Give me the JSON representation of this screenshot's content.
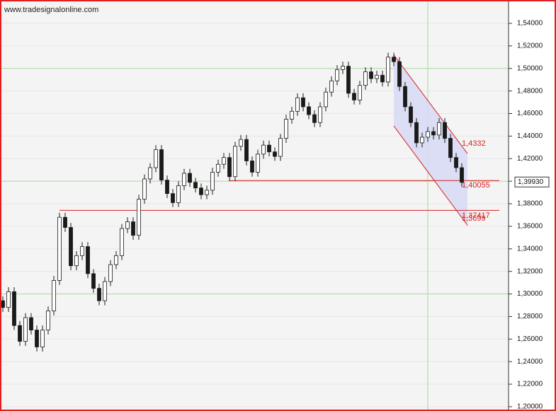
{
  "chart_data": {
    "type": "candlestick",
    "watermark": "www.tradesignalonline.com",
    "open": [
      1.294,
      1.288,
      1.302,
      1.272,
      1.258,
      1.279,
      1.268,
      1.253,
      1.268,
      1.285,
      1.312,
      1.368,
      1.359,
      1.325,
      1.334,
      1.342,
      1.318,
      1.305,
      1.294,
      1.311,
      1.326,
      1.334,
      1.358,
      1.364,
      1.352,
      1.384,
      1.402,
      1.412,
      1.428,
      1.401,
      1.389,
      1.381,
      1.396,
      1.407,
      1.399,
      1.394,
      1.388,
      1.392,
      1.408,
      1.415,
      1.421,
      1.404,
      1.431,
      1.437,
      1.418,
      1.408,
      1.424,
      1.432,
      1.426,
      1.422,
      1.438,
      1.455,
      1.462,
      1.474,
      1.466,
      1.459,
      1.452,
      1.466,
      1.479,
      1.489,
      1.499,
      1.502,
      1.478,
      1.472,
      1.485,
      1.497,
      1.491,
      1.494,
      1.488,
      1.51,
      1.506,
      1.484,
      1.466,
      1.452,
      1.434,
      1.439,
      1.444,
      1.441,
      1.452,
      1.438,
      1.421,
      1.412
    ],
    "high": [
      1.298,
      1.306,
      1.306,
      1.276,
      1.283,
      1.283,
      1.272,
      1.272,
      1.289,
      1.316,
      1.372,
      1.372,
      1.363,
      1.338,
      1.346,
      1.346,
      1.322,
      1.309,
      1.315,
      1.33,
      1.338,
      1.362,
      1.368,
      1.368,
      1.388,
      1.406,
      1.416,
      1.432,
      1.432,
      1.405,
      1.393,
      1.4,
      1.411,
      1.411,
      1.403,
      1.398,
      1.396,
      1.412,
      1.419,
      1.425,
      1.425,
      1.435,
      1.441,
      1.441,
      1.422,
      1.428,
      1.436,
      1.436,
      1.43,
      1.442,
      1.459,
      1.466,
      1.478,
      1.478,
      1.47,
      1.463,
      1.47,
      1.483,
      1.493,
      1.503,
      1.506,
      1.506,
      1.482,
      1.489,
      1.501,
      1.501,
      1.498,
      1.498,
      1.514,
      1.514,
      1.51,
      1.488,
      1.47,
      1.456,
      1.443,
      1.448,
      1.448,
      1.456,
      1.456,
      1.442,
      1.425,
      1.416
    ],
    "low": [
      1.284,
      1.284,
      1.268,
      1.254,
      1.254,
      1.264,
      1.249,
      1.249,
      1.264,
      1.281,
      1.308,
      1.355,
      1.321,
      1.321,
      1.33,
      1.314,
      1.301,
      1.29,
      1.29,
      1.307,
      1.322,
      1.33,
      1.354,
      1.348,
      1.348,
      1.38,
      1.398,
      1.408,
      1.397,
      1.385,
      1.377,
      1.377,
      1.392,
      1.395,
      1.39,
      1.384,
      1.384,
      1.388,
      1.404,
      1.411,
      1.4,
      1.4,
      1.427,
      1.414,
      1.404,
      1.404,
      1.42,
      1.422,
      1.418,
      1.418,
      1.434,
      1.451,
      1.458,
      1.462,
      1.455,
      1.448,
      1.448,
      1.462,
      1.475,
      1.485,
      1.495,
      1.474,
      1.468,
      1.468,
      1.481,
      1.487,
      1.487,
      1.484,
      1.484,
      1.502,
      1.48,
      1.462,
      1.448,
      1.43,
      1.43,
      1.435,
      1.437,
      1.437,
      1.434,
      1.417,
      1.408,
      1.395
    ],
    "close": [
      1.288,
      1.302,
      1.272,
      1.258,
      1.279,
      1.268,
      1.253,
      1.268,
      1.285,
      1.312,
      1.368,
      1.359,
      1.325,
      1.334,
      1.342,
      1.318,
      1.305,
      1.294,
      1.311,
      1.326,
      1.334,
      1.358,
      1.364,
      1.352,
      1.384,
      1.402,
      1.412,
      1.428,
      1.401,
      1.389,
      1.381,
      1.396,
      1.407,
      1.399,
      1.394,
      1.388,
      1.392,
      1.408,
      1.415,
      1.421,
      1.404,
      1.431,
      1.437,
      1.418,
      1.408,
      1.424,
      1.432,
      1.426,
      1.422,
      1.438,
      1.455,
      1.462,
      1.474,
      1.466,
      1.459,
      1.452,
      1.466,
      1.479,
      1.489,
      1.499,
      1.502,
      1.478,
      1.472,
      1.485,
      1.497,
      1.491,
      1.494,
      1.488,
      1.51,
      1.506,
      1.484,
      1.466,
      1.452,
      1.434,
      1.439,
      1.444,
      1.441,
      1.452,
      1.438,
      1.421,
      1.412,
      1.399
    ],
    "up_color": "#ffffff",
    "down_color": "#1a1a1a",
    "wick_color": "#1a1a1a",
    "ylim": [
      1.1962,
      1.5607
    ],
    "yticks": [
      {
        "value": 1.2,
        "label": "1,20000"
      },
      {
        "value": 1.22,
        "label": "1,22000"
      },
      {
        "value": 1.24,
        "label": "1,24000"
      },
      {
        "value": 1.26,
        "label": "1,26000"
      },
      {
        "value": 1.28,
        "label": "1,28000"
      },
      {
        "value": 1.3,
        "label": "1,30000"
      },
      {
        "value": 1.32,
        "label": "1,32000"
      },
      {
        "value": 1.34,
        "label": "1,34000"
      },
      {
        "value": 1.36,
        "label": "1,36000"
      },
      {
        "value": 1.38,
        "label": "1,38000"
      },
      {
        "value": 1.4,
        "label": "1,40000"
      },
      {
        "value": 1.42,
        "label": "1,42000"
      },
      {
        "value": 1.44,
        "label": "1,44000"
      },
      {
        "value": 1.46,
        "label": "1,46000"
      },
      {
        "value": 1.48,
        "label": "1,48000"
      },
      {
        "value": 1.5,
        "label": "1,50000"
      },
      {
        "value": 1.52,
        "label": "1,52000"
      },
      {
        "value": 1.54,
        "label": "1,54000"
      }
    ],
    "grid": true,
    "major_gridlines": [
      1.3,
      1.4,
      1.5
    ],
    "major_vline_index": 75,
    "major_grid_color": "#a8d8a0",
    "levels": [
      {
        "value": 1.40055,
        "label": "1,40055",
        "from_index": 40
      },
      {
        "value": 1.37417,
        "label": "1,37417",
        "from_index": 10
      }
    ],
    "channel": {
      "from_index": 69,
      "to_index": 82,
      "upper": [
        1.512,
        1.4245
      ],
      "lower": [
        1.449,
        1.3609
      ],
      "color": "#d62020",
      "fill": "#d8dcf4"
    },
    "channel_labels": [
      {
        "value": 1.4332,
        "label": "1,4332"
      },
      {
        "value": 1.3699,
        "label": "1,3699"
      }
    ],
    "last_price": {
      "value": 1.3993,
      "label": "1,39930"
    }
  }
}
